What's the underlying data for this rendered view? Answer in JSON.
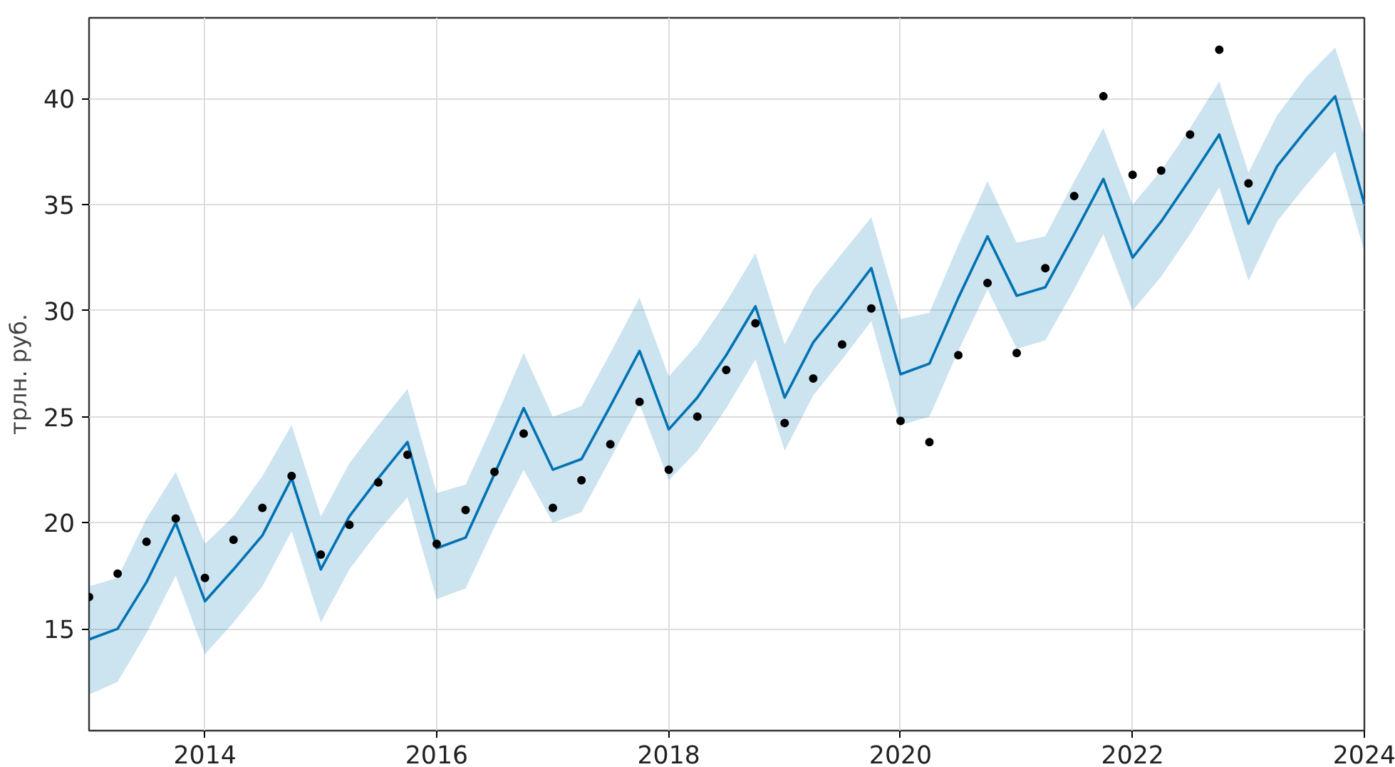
{
  "chart_data": {
    "type": "line",
    "ylabel": "трлн. руб.",
    "xlim": [
      "2013-01-01",
      "2024-01-01"
    ],
    "xticks": [
      "2014",
      "2016",
      "2018",
      "2020",
      "2022",
      "2024"
    ],
    "ylim": [
      10.2,
      43.8
    ],
    "yticks": [
      15,
      20,
      25,
      30,
      35,
      40
    ],
    "grid": true,
    "series": [
      {
        "color": "#0072b2",
        "line_style": "solid",
        "x": [
          "2013-01",
          "2013-04",
          "2013-07",
          "2013-10",
          "2014-01",
          "2014-04",
          "2014-07",
          "2014-10",
          "2015-01",
          "2015-04",
          "2015-07",
          "2015-10",
          "2016-01",
          "2016-04",
          "2016-07",
          "2016-10",
          "2017-01",
          "2017-04",
          "2017-07",
          "2017-10",
          "2018-01",
          "2018-04",
          "2018-07",
          "2018-10",
          "2019-01",
          "2019-04",
          "2019-07",
          "2019-10",
          "2020-01",
          "2020-04",
          "2020-07",
          "2020-10",
          "2021-01",
          "2021-04",
          "2021-07",
          "2021-10",
          "2022-01",
          "2022-04",
          "2022-07",
          "2022-10",
          "2023-01",
          "2023-04",
          "2023-07",
          "2023-10",
          "2024-01"
        ],
        "values": [
          14.5,
          15.0,
          17.2,
          20.0,
          16.3,
          17.8,
          19.4,
          22.1,
          17.8,
          20.3,
          22.1,
          23.8,
          18.8,
          19.3,
          22.3,
          25.4,
          22.5,
          23.0,
          25.5,
          28.1,
          24.4,
          25.9,
          27.9,
          30.2,
          25.9,
          28.5,
          30.2,
          32.0,
          27.0,
          27.5,
          30.6,
          33.5,
          30.7,
          31.1,
          33.6,
          36.2,
          32.5,
          34.2,
          36.2,
          38.3,
          34.1,
          36.8,
          38.5,
          40.1,
          35.0
        ],
        "lower": [
          11.9,
          12.5,
          14.8,
          17.5,
          13.8,
          15.3,
          17.0,
          19.6,
          15.3,
          17.8,
          19.6,
          21.2,
          16.4,
          16.9,
          19.8,
          22.5,
          20.0,
          20.5,
          23.0,
          25.6,
          22.0,
          23.4,
          25.4,
          27.7,
          23.4,
          26.0,
          27.7,
          29.5,
          24.6,
          25.0,
          28.1,
          31.0,
          28.2,
          28.6,
          31.0,
          33.6,
          30.0,
          31.6,
          33.6,
          35.8,
          31.4,
          34.2,
          35.9,
          37.5,
          32.8
        ],
        "upper": [
          17.0,
          17.4,
          20.2,
          22.4,
          19.0,
          20.3,
          22.2,
          24.6,
          20.3,
          22.8,
          24.6,
          26.3,
          21.4,
          21.8,
          24.8,
          28.0,
          25.0,
          25.5,
          28.0,
          30.6,
          26.9,
          28.4,
          30.4,
          32.7,
          28.4,
          31.0,
          32.7,
          34.4,
          29.6,
          29.9,
          33.1,
          36.1,
          33.2,
          33.5,
          36.1,
          38.6,
          35.0,
          36.6,
          38.6,
          40.8,
          36.5,
          39.2,
          41.0,
          42.4,
          38.2
        ]
      },
      {
        "type": "scatter",
        "color": "#000000",
        "marker": "circle",
        "x": [
          "2013-01",
          "2013-04",
          "2013-07",
          "2013-10",
          "2014-01",
          "2014-04",
          "2014-07",
          "2014-10",
          "2015-01",
          "2015-04",
          "2015-07",
          "2015-10",
          "2016-01",
          "2016-04",
          "2016-07",
          "2016-10",
          "2017-01",
          "2017-04",
          "2017-07",
          "2017-10",
          "2018-01",
          "2018-04",
          "2018-07",
          "2018-10",
          "2019-01",
          "2019-04",
          "2019-07",
          "2019-10",
          "2020-01",
          "2020-04",
          "2020-07",
          "2020-10",
          "2021-01",
          "2021-04",
          "2021-07",
          "2021-10",
          "2022-01",
          "2022-04",
          "2022-07",
          "2022-10",
          "2023-01"
        ],
        "values": [
          16.5,
          17.6,
          19.1,
          20.2,
          17.4,
          19.2,
          20.7,
          22.2,
          18.5,
          19.9,
          21.9,
          23.2,
          19.0,
          20.6,
          22.4,
          24.2,
          20.7,
          22.0,
          23.7,
          25.7,
          22.5,
          25.0,
          27.2,
          29.4,
          24.7,
          26.8,
          28.4,
          30.1,
          24.8,
          23.8,
          27.9,
          31.3,
          28.0,
          32.0,
          35.4,
          40.1,
          36.4,
          36.6,
          38.3,
          42.3,
          36.0
        ]
      }
    ]
  }
}
